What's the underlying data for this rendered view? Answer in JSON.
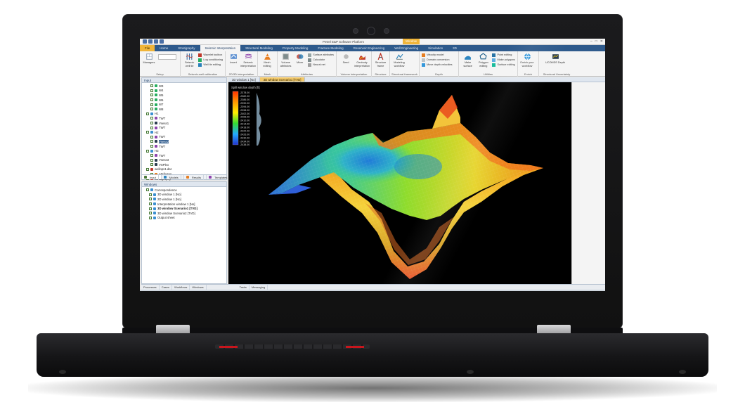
{
  "window": {
    "title": "Petrel E&P Software Platform",
    "context_tab": "Window"
  },
  "ribbon_tabs": [
    {
      "label": "File"
    },
    {
      "label": "Home"
    },
    {
      "label": "Stratigraphy"
    },
    {
      "label": "Seismic Interpretation"
    },
    {
      "label": "Structural Modeling"
    },
    {
      "label": "Property Modeling"
    },
    {
      "label": "Fracture Modeling"
    },
    {
      "label": "Reservoir Engineering"
    },
    {
      "label": "Well Engineering"
    },
    {
      "label": "Simulation"
    },
    {
      "label": "3D"
    }
  ],
  "ribbon": {
    "groups": [
      {
        "name": "Setup",
        "big": "Managers"
      },
      {
        "name": "Seismic-well calibration",
        "big": "Seismic well tie",
        "small": [
          "Wavelet toolbox",
          "Log conditioning",
          "Well tie editing"
        ]
      },
      {
        "name": "2D/3D interpretation",
        "big": "Insert",
        "big2": "Seismic interpretation"
      },
      {
        "name": "Mesh",
        "big": "Mesh editing"
      },
      {
        "name": "Attributes",
        "big": "Volume attributes",
        "big2": "Mixer",
        "small": [
          "Surface attributes",
          "Calculator",
          "Neural net"
        ]
      },
      {
        "name": "Volume interpretation",
        "big": "Seed",
        "big2": "Geobody interpretation"
      },
      {
        "name": "Structure",
        "big": "Structure frame"
      },
      {
        "name": "Structural framework",
        "big": "Modeling workflow"
      },
      {
        "name": "Depth",
        "small": [
          "Velocity model",
          "Domain conversion",
          "Move depth velocities"
        ]
      },
      {
        "name": "Utilities",
        "big": "Make surface",
        "big2": "Polygon editing",
        "small": [
          "Point editing",
          "Make polygons",
          "Surface editing"
        ]
      },
      {
        "name": "Enrich",
        "big": "Enrich your workflow"
      },
      {
        "name": "Structural Uncertainty",
        "big": "UCOMDS Depth"
      }
    ]
  },
  "input_pane": {
    "header": "Input",
    "items": [
      "W3",
      "W4",
      "W5",
      "W6",
      "W7",
      "W8",
      "H1",
      "TWT",
      "Vsess1",
      "TWT",
      "H2",
      "TWT",
      "Vsess2",
      "TWT",
      "H3",
      "TWT",
      "Vsess3",
      "VSPlex",
      "wellops1.dat",
      "Attributes",
      "Stratigraphy"
    ],
    "tabs": [
      "Input",
      "Models",
      "Results",
      "Templates"
    ]
  },
  "windows_pane": {
    "header": "Windows",
    "items": [
      "Correspondence",
      "3D window 1 [No]",
      "2D window 1 [No]",
      "Interpretation window 1 [No]",
      "3D window Scenario1 [TVD]",
      "3D window Scenario2 [TVD]",
      "Output sheet"
    ],
    "tabs": [
      "Processes",
      "Cases",
      "Workflows",
      "Windows"
    ]
  },
  "view_tabs": [
    "3D window 1 [No]",
    "3D window Scenario1 [TVD]"
  ],
  "bottom_tabs": [
    "Tasks",
    "Messaging"
  ],
  "viewport": {
    "legend_title": "Spill window depth [ft]",
    "legend_ticks": [
      "-2378.00",
      "-2382.00",
      "-2386.00",
      "-2390.00",
      "-2394.00",
      "-2398.00",
      "-2402.00",
      "-2406.00",
      "-2410.00",
      "-2414.00",
      "-2418.00",
      "-2422.00",
      "-2426.00",
      "-2430.00",
      "-2434.00",
      "-2438.00"
    ]
  },
  "colors": {
    "ribbon_tab_bg": "#2e5a8c",
    "file_tab": "#f0b53a",
    "viewport_bg": "#000000"
  }
}
